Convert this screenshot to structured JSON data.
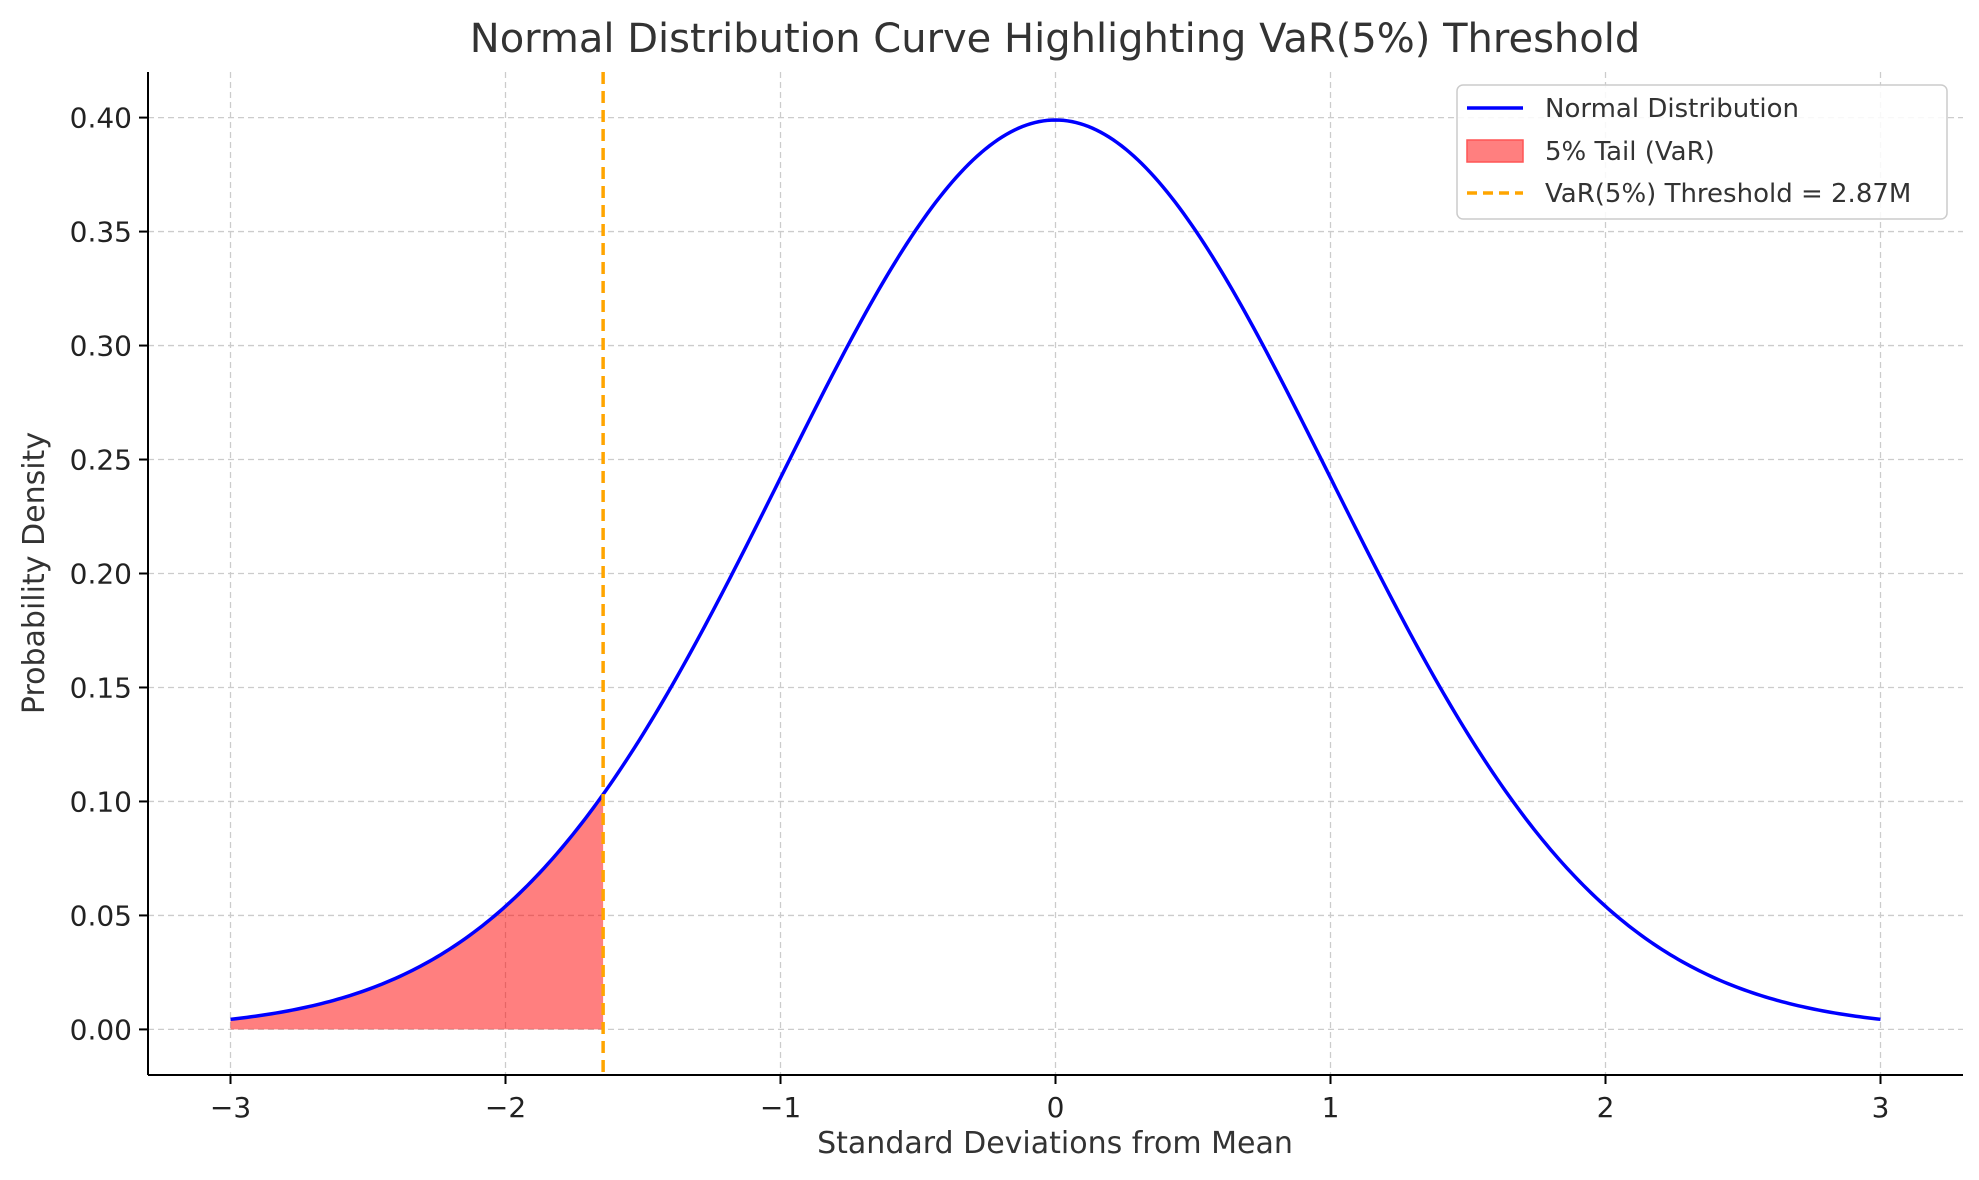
{
  "chart_data": {
    "type": "line",
    "title": "Normal Distribution Curve Highlighting VaR(5%) Threshold",
    "xlabel": "Standard Deviations from Mean",
    "ylabel": "Probability Density",
    "xlim": [
      -3.3,
      3.3
    ],
    "ylim": [
      -0.02,
      0.42
    ],
    "x_ticks": [
      -3,
      -2,
      -1,
      0,
      1,
      2,
      3
    ],
    "x_tick_labels": [
      "−3",
      "−2",
      "−1",
      "0",
      "1",
      "2",
      "3"
    ],
    "y_ticks": [
      0.0,
      0.05,
      0.1,
      0.15,
      0.2,
      0.25,
      0.3,
      0.35,
      0.4
    ],
    "y_tick_labels": [
      "0.00",
      "0.05",
      "0.10",
      "0.15",
      "0.20",
      "0.25",
      "0.30",
      "0.35",
      "0.40"
    ],
    "grid": true,
    "legend_position": "top-right",
    "series": [
      {
        "name": "Normal Distribution",
        "kind": "line",
        "color": "#0000ff",
        "x": [
          -3.0,
          -2.8,
          -2.6,
          -2.4,
          -2.2,
          -2.0,
          -1.8,
          -1.645,
          -1.4,
          -1.2,
          -1.0,
          -0.8,
          -0.6,
          -0.4,
          -0.2,
          0.0,
          0.2,
          0.4,
          0.6,
          0.8,
          1.0,
          1.2,
          1.4,
          1.6,
          1.8,
          2.0,
          2.2,
          2.4,
          2.6,
          2.8,
          3.0
        ],
        "y": [
          0.0044,
          0.0079,
          0.0136,
          0.0224,
          0.0355,
          0.054,
          0.079,
          0.1031,
          0.1497,
          0.1942,
          0.242,
          0.2897,
          0.3332,
          0.3683,
          0.391,
          0.3989,
          0.391,
          0.3683,
          0.3332,
          0.2897,
          0.242,
          0.1942,
          0.1497,
          0.1109,
          0.079,
          0.054,
          0.0355,
          0.0224,
          0.0136,
          0.0079,
          0.0044
        ]
      },
      {
        "name": "5% Tail (VaR)",
        "kind": "area",
        "color": "#ff0000",
        "x": [
          -3.0,
          -2.8,
          -2.6,
          -2.4,
          -2.2,
          -2.0,
          -1.8,
          -1.645
        ],
        "y": [
          0.0044,
          0.0079,
          0.0136,
          0.0224,
          0.0355,
          0.054,
          0.079,
          0.1031
        ]
      },
      {
        "name": "VaR(5%) Threshold = 2.87M",
        "kind": "vline",
        "color": "#ffa500",
        "x": -1.645
      }
    ]
  }
}
